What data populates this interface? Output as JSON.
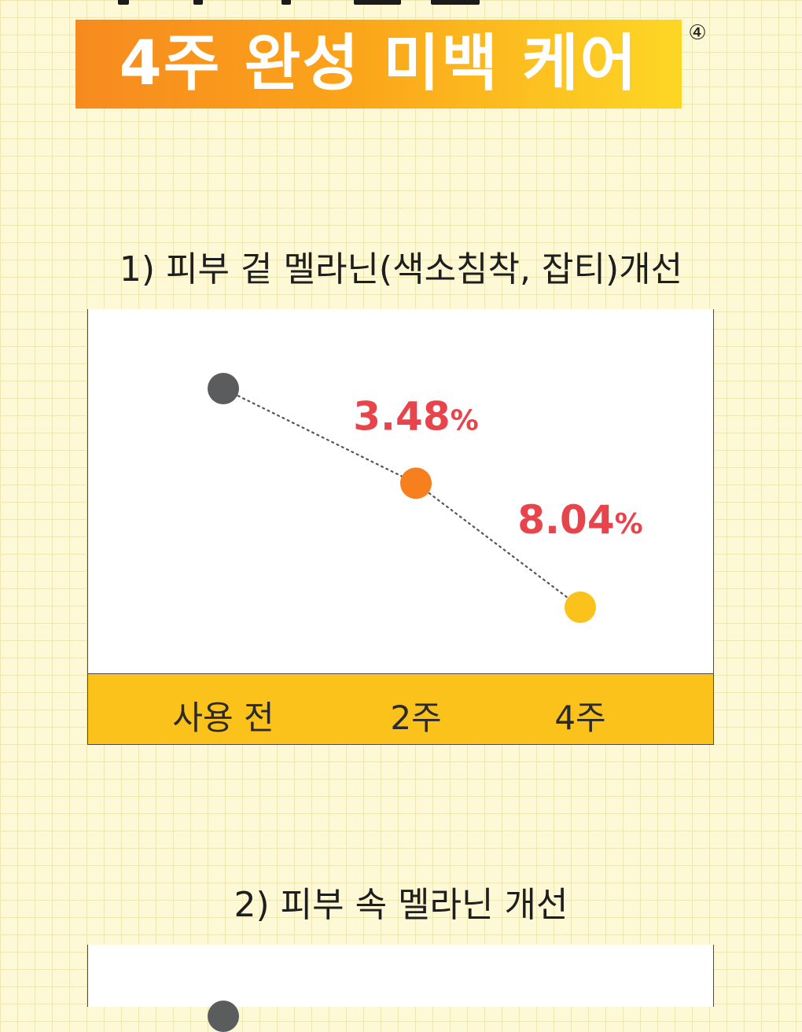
{
  "header": {
    "title": "4주 완성 미백 케어",
    "footnote_mark": "④"
  },
  "sections": [
    {
      "title": "1) 피부 겉 멜라닌(색소침착, 잡티)개선"
    },
    {
      "title": "2) 피부 속 멜라닌 개선"
    }
  ],
  "chart_data": [
    {
      "type": "line",
      "title": "1) 피부 겉 멜라닌(색소침착, 잡티)개선",
      "categories": [
        "사용 전",
        "2주",
        "4주"
      ],
      "point_colors": [
        "#5a5c5e",
        "#f77f1d",
        "#fbc21c"
      ],
      "relative_level": [
        1.0,
        0.9652,
        0.9196
      ],
      "annotations": [
        {
          "category": "2주",
          "value": "3.48",
          "unit": "%"
        },
        {
          "category": "4주",
          "value": "8.04",
          "unit": "%"
        }
      ],
      "line_style": "dotted",
      "line_color": "#555555",
      "annotation_color": "#e7444b",
      "category_band_color": "#fbc21c",
      "grid": false,
      "legend": "none"
    }
  ]
}
